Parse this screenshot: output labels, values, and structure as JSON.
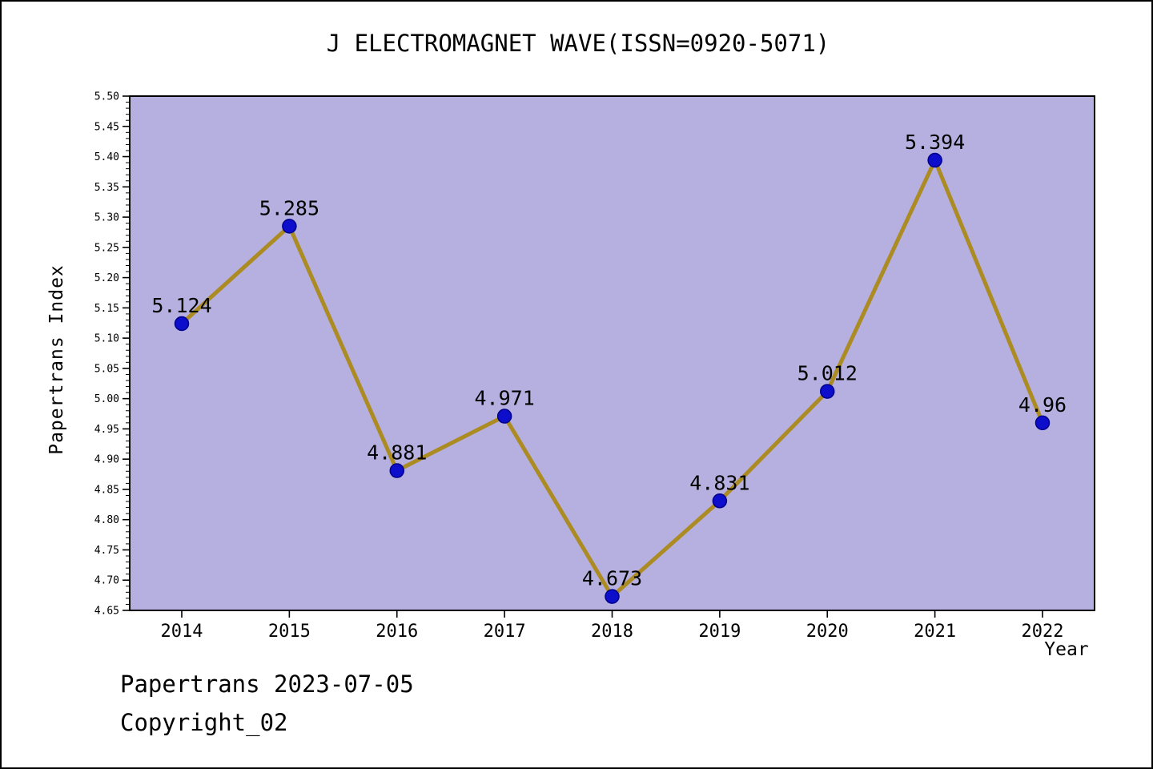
{
  "title": "J ELECTROMAGNET WAVE(ISSN=0920-5071)",
  "footer": {
    "line1": "Papertrans 2023-07-05",
    "line2": "Copyright_02"
  },
  "colors": {
    "plot_bg": "#b6b0e0",
    "line": "#ab8b22",
    "marker_fill": "#0d0dcc",
    "marker_edge": "#00008b",
    "axis": "#000000"
  },
  "chart_data": {
    "type": "line",
    "x": [
      2014,
      2015,
      2016,
      2017,
      2018,
      2019,
      2020,
      2021,
      2022
    ],
    "values": [
      5.124,
      5.285,
      4.881,
      4.971,
      4.673,
      4.831,
      5.012,
      5.394,
      4.96
    ],
    "point_labels": [
      "5.124",
      "5.285",
      "4.881",
      "4.971",
      "4.673",
      "4.831",
      "5.012",
      "5.394",
      "4.96"
    ],
    "title": "J ELECTROMAGNET WAVE(ISSN=0920-5071)",
    "xlabel": "Year",
    "ylabel": "Papertrans Index",
    "ylim": [
      4.65,
      5.5
    ],
    "ytick_major_step": 0.05,
    "ytick_minor_step": 0.01,
    "grid": false,
    "legend": "none"
  }
}
